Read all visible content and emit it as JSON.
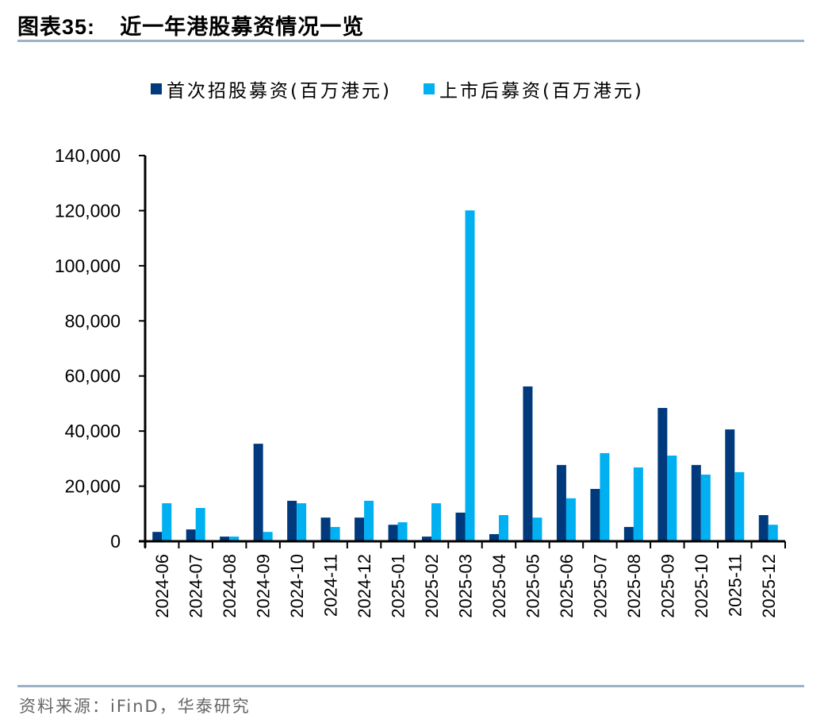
{
  "header": {
    "title_prefix": "图表",
    "title_number": "35:",
    "title_text": "近一年港股募资情况一览"
  },
  "footer": {
    "source": "资料来源：iFinD，华泰研究"
  },
  "colors": {
    "ipo": "#003A7D",
    "post_ipo": "#00B0F0",
    "rule": "#9DB1C9"
  },
  "legend": [
    {
      "label": "首次招股募资(百万港元)",
      "color": "#003A7D"
    },
    {
      "label": "上市后募资(百万港元)",
      "color": "#00B0F0"
    }
  ],
  "chart_data": {
    "type": "bar",
    "title": "近一年港股募资情况一览",
    "xlabel": "",
    "ylabel": "",
    "ylim": [
      0,
      140000
    ],
    "yticks": [
      0,
      20000,
      40000,
      60000,
      80000,
      100000,
      120000,
      140000
    ],
    "ytick_labels": [
      "0",
      "20,000",
      "40,000",
      "60,000",
      "80,000",
      "100,000",
      "120,000",
      "140,000"
    ],
    "grid": false,
    "legend_position": "top",
    "categories": [
      "2024-06",
      "2024-07",
      "2024-08",
      "2024-09",
      "2024-10",
      "2024-11",
      "2024-12",
      "2025-01",
      "2025-02",
      "2025-03",
      "2025-04",
      "2025-05",
      "2025-06",
      "2025-07",
      "2025-08",
      "2025-09",
      "2025-10",
      "2025-11",
      "2025-12"
    ],
    "series": [
      {
        "name": "首次招股募资(百万港元)",
        "color": "#003A7D",
        "values": [
          3400,
          4300,
          1700,
          35400,
          14700,
          8600,
          8600,
          6000,
          1700,
          10400,
          2600,
          56200,
          27700,
          19000,
          5200,
          48400,
          27700,
          40600,
          9500
        ]
      },
      {
        "name": "上市后募资(百万港元)",
        "color": "#00B0F0",
        "values": [
          13800,
          12100,
          1700,
          3400,
          13800,
          5200,
          14700,
          6900,
          13800,
          120100,
          9500,
          8600,
          15600,
          32000,
          26800,
          31100,
          24200,
          25100,
          6000
        ]
      }
    ]
  }
}
